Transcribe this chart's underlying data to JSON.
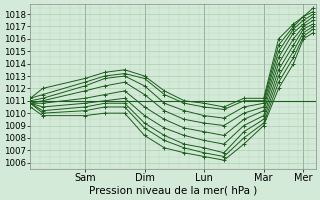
{
  "xlabel": "Pression niveau de la mer( hPa )",
  "ylim": [
    1005.5,
    1018.8
  ],
  "xlim": [
    0,
    115
  ],
  "bg_color": "#d4ead8",
  "grid_color": "#a0c8a8",
  "line_color": "#1a5c1a",
  "day_ticks_x": [
    22,
    46,
    70,
    94,
    110
  ],
  "day_names_x": [
    "Sam",
    "Dim",
    "Lun",
    "Mar",
    "Mer"
  ],
  "tick_labels_y": [
    1006,
    1007,
    1008,
    1009,
    1010,
    1011,
    1012,
    1013,
    1014,
    1015,
    1016,
    1017,
    1018
  ],
  "hline_y": 1011.0,
  "series": [
    [
      [
        0,
        1011.2
      ],
      [
        5,
        1011.5
      ],
      [
        22,
        1012.5
      ],
      [
        30,
        1013.0
      ],
      [
        38,
        1013.2
      ],
      [
        46,
        1012.8
      ],
      [
        54,
        1011.5
      ],
      [
        62,
        1010.8
      ],
      [
        70,
        1010.5
      ],
      [
        78,
        1010.3
      ],
      [
        86,
        1011.0
      ],
      [
        94,
        1011.0
      ],
      [
        100,
        1015.5
      ],
      [
        106,
        1017.0
      ],
      [
        110,
        1017.8
      ],
      [
        114,
        1018.2
      ]
    ],
    [
      [
        0,
        1011.0
      ],
      [
        5,
        1011.2
      ],
      [
        22,
        1012.2
      ],
      [
        30,
        1012.8
      ],
      [
        38,
        1013.0
      ],
      [
        46,
        1012.2
      ],
      [
        54,
        1010.8
      ],
      [
        62,
        1010.2
      ],
      [
        70,
        1009.8
      ],
      [
        78,
        1009.6
      ],
      [
        86,
        1010.5
      ],
      [
        94,
        1010.8
      ],
      [
        100,
        1015.0
      ],
      [
        106,
        1016.8
      ],
      [
        110,
        1017.5
      ],
      [
        114,
        1018.0
      ]
    ],
    [
      [
        0,
        1010.8
      ],
      [
        5,
        1011.0
      ],
      [
        22,
        1011.8
      ],
      [
        30,
        1012.2
      ],
      [
        38,
        1012.5
      ],
      [
        46,
        1011.5
      ],
      [
        54,
        1010.2
      ],
      [
        62,
        1009.5
      ],
      [
        70,
        1009.2
      ],
      [
        78,
        1009.0
      ],
      [
        86,
        1010.0
      ],
      [
        94,
        1010.5
      ],
      [
        100,
        1014.5
      ],
      [
        106,
        1016.5
      ],
      [
        110,
        1017.2
      ],
      [
        114,
        1017.8
      ]
    ],
    [
      [
        0,
        1010.8
      ],
      [
        5,
        1010.8
      ],
      [
        22,
        1011.2
      ],
      [
        30,
        1011.5
      ],
      [
        38,
        1011.8
      ],
      [
        46,
        1010.5
      ],
      [
        54,
        1009.5
      ],
      [
        62,
        1008.8
      ],
      [
        70,
        1008.5
      ],
      [
        78,
        1008.2
      ],
      [
        86,
        1009.5
      ],
      [
        94,
        1010.2
      ],
      [
        100,
        1014.0
      ],
      [
        106,
        1016.0
      ],
      [
        110,
        1017.0
      ],
      [
        114,
        1017.5
      ]
    ],
    [
      [
        0,
        1010.8
      ],
      [
        5,
        1010.5
      ],
      [
        22,
        1010.8
      ],
      [
        30,
        1011.0
      ],
      [
        38,
        1011.2
      ],
      [
        46,
        1009.8
      ],
      [
        54,
        1008.8
      ],
      [
        62,
        1008.2
      ],
      [
        70,
        1007.8
      ],
      [
        78,
        1007.5
      ],
      [
        86,
        1009.0
      ],
      [
        94,
        1009.8
      ],
      [
        100,
        1013.5
      ],
      [
        106,
        1015.5
      ],
      [
        110,
        1016.8
      ],
      [
        114,
        1017.2
      ]
    ],
    [
      [
        0,
        1010.8
      ],
      [
        5,
        1010.2
      ],
      [
        22,
        1010.5
      ],
      [
        30,
        1010.8
      ],
      [
        38,
        1010.8
      ],
      [
        46,
        1009.2
      ],
      [
        54,
        1008.2
      ],
      [
        62,
        1007.5
      ],
      [
        70,
        1007.2
      ],
      [
        78,
        1006.8
      ],
      [
        86,
        1008.5
      ],
      [
        94,
        1009.5
      ],
      [
        100,
        1013.0
      ],
      [
        106,
        1015.0
      ],
      [
        110,
        1016.5
      ],
      [
        114,
        1017.0
      ]
    ],
    [
      [
        0,
        1010.8
      ],
      [
        5,
        1010.0
      ],
      [
        22,
        1010.2
      ],
      [
        30,
        1010.5
      ],
      [
        38,
        1010.5
      ],
      [
        46,
        1008.8
      ],
      [
        54,
        1007.8
      ],
      [
        62,
        1007.2
      ],
      [
        70,
        1006.8
      ],
      [
        78,
        1006.5
      ],
      [
        86,
        1008.0
      ],
      [
        94,
        1009.2
      ],
      [
        100,
        1012.5
      ],
      [
        106,
        1014.5
      ],
      [
        110,
        1016.2
      ],
      [
        114,
        1016.8
      ]
    ],
    [
      [
        0,
        1010.5
      ],
      [
        5,
        1009.8
      ],
      [
        22,
        1009.8
      ],
      [
        30,
        1010.0
      ],
      [
        38,
        1010.0
      ],
      [
        46,
        1008.2
      ],
      [
        54,
        1007.2
      ],
      [
        62,
        1006.8
      ],
      [
        70,
        1006.5
      ],
      [
        78,
        1006.2
      ],
      [
        86,
        1007.5
      ],
      [
        94,
        1009.0
      ],
      [
        100,
        1012.0
      ],
      [
        106,
        1014.0
      ],
      [
        110,
        1016.0
      ],
      [
        114,
        1016.5
      ]
    ],
    [
      [
        0,
        1011.2
      ],
      [
        5,
        1012.0
      ],
      [
        22,
        1012.8
      ],
      [
        30,
        1013.3
      ],
      [
        38,
        1013.5
      ],
      [
        46,
        1013.0
      ],
      [
        54,
        1011.8
      ],
      [
        62,
        1011.0
      ],
      [
        70,
        1010.8
      ],
      [
        78,
        1010.5
      ],
      [
        86,
        1011.2
      ],
      [
        94,
        1011.2
      ],
      [
        100,
        1016.0
      ],
      [
        106,
        1017.2
      ],
      [
        110,
        1017.8
      ],
      [
        114,
        1018.5
      ]
    ]
  ]
}
